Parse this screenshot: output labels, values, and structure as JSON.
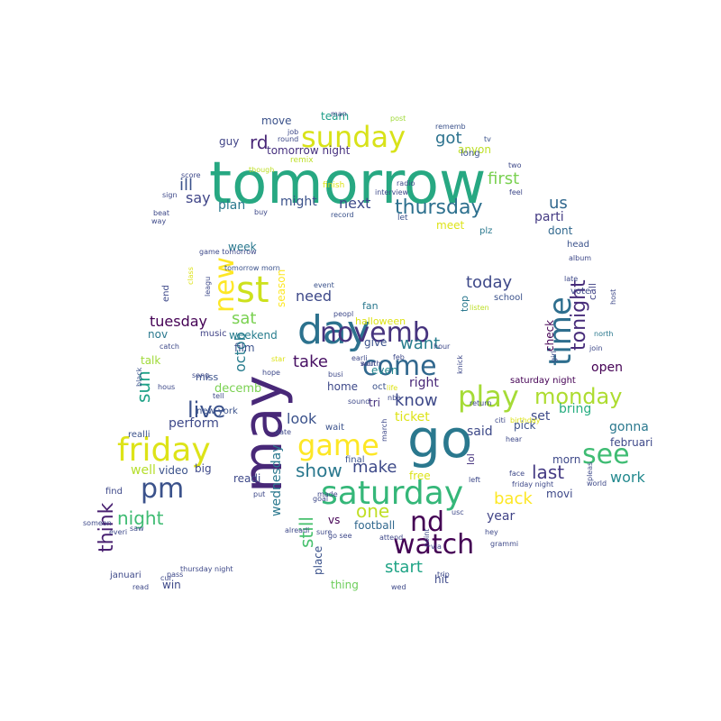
{
  "words": [
    {
      "text": "tomorrow",
      "color": "#27a882"
    },
    {
      "text": "go",
      "color": "#2a788e"
    },
    {
      "text": "may",
      "color": "#482878"
    },
    {
      "text": "day",
      "color": "#2c728e"
    },
    {
      "text": "st",
      "color": "#cde11d"
    },
    {
      "text": "saturday",
      "color": "#35b779"
    },
    {
      "text": "friday",
      "color": "#dde318"
    },
    {
      "text": "come",
      "color": "#31688e"
    },
    {
      "text": "watch",
      "color": "#440154"
    },
    {
      "text": "play",
      "color": "#a5db36"
    },
    {
      "text": "sunday",
      "color": "#d8e219"
    },
    {
      "text": "game",
      "color": "#fde725"
    },
    {
      "text": "pm",
      "color": "#3b528b"
    },
    {
      "text": "novemb",
      "color": "#46337e"
    },
    {
      "text": "time",
      "color": "#2e6e8e"
    },
    {
      "text": "see",
      "color": "#3fbc73"
    },
    {
      "text": "nd",
      "color": "#440154"
    },
    {
      "text": "live",
      "color": "#3b528b"
    },
    {
      "text": "new",
      "color": "#fde725"
    },
    {
      "text": "thursday",
      "color": "#2d708e"
    },
    {
      "text": "monday",
      "color": "#addc30"
    },
    {
      "text": "tonight",
      "color": "#472c7a"
    },
    {
      "text": "night",
      "color": "#3fbc73"
    },
    {
      "text": "think",
      "color": "#481f70"
    },
    {
      "text": "one",
      "color": "#c0df25"
    },
    {
      "text": "show",
      "color": "#2a788e"
    },
    {
      "text": "make",
      "color": "#3e4a89"
    },
    {
      "text": "take",
      "color": "#471063"
    },
    {
      "text": "today",
      "color": "#3e4989"
    },
    {
      "text": "know",
      "color": "#3e4989"
    },
    {
      "text": "got",
      "color": "#2c728e"
    },
    {
      "text": "back",
      "color": "#fde725"
    },
    {
      "text": "last",
      "color": "#443a83"
    },
    {
      "text": "start",
      "color": "#20a486"
    },
    {
      "text": "want",
      "color": "#287d8e"
    },
    {
      "text": "still",
      "color": "#48c16e"
    },
    {
      "text": "rd",
      "color": "#482677"
    },
    {
      "text": "first",
      "color": "#7ad151"
    },
    {
      "text": "next",
      "color": "#3e4a89"
    },
    {
      "text": "us",
      "color": "#31688e"
    },
    {
      "text": "sat",
      "color": "#7ad151"
    },
    {
      "text": "need",
      "color": "#3e4989"
    },
    {
      "text": "sun",
      "color": "#1fa287"
    },
    {
      "text": "tuesday",
      "color": "#440154"
    },
    {
      "text": "octob",
      "color": "#287d8e"
    },
    {
      "text": "wednesday",
      "color": "#2a788e"
    },
    {
      "text": "work",
      "color": "#23898e"
    },
    {
      "text": "look",
      "color": "#3b528b"
    },
    {
      "text": "ill",
      "color": "#3b528b"
    },
    {
      "text": "say",
      "color": "#404688"
    },
    {
      "text": "said",
      "color": "#3e4a89"
    },
    {
      "text": "year",
      "color": "#414487"
    },
    {
      "text": "gonna",
      "color": "#2a788e"
    },
    {
      "text": "open",
      "color": "#440154"
    },
    {
      "text": "ticket",
      "color": "#dde318"
    },
    {
      "text": "right",
      "color": "#482677"
    },
    {
      "text": "set",
      "color": "#3e4a89"
    },
    {
      "text": "bring",
      "color": "#27ad81"
    },
    {
      "text": "perform",
      "color": "#3e4989"
    },
    {
      "text": "decemb",
      "color": "#7ad151"
    },
    {
      "text": "give",
      "color": "#3b528b"
    },
    {
      "text": "even",
      "color": "#24868e"
    },
    {
      "text": "home",
      "color": "#3e4989"
    },
    {
      "text": "tri",
      "color": "#46337e"
    },
    {
      "text": "video",
      "color": "#3b528b"
    },
    {
      "text": "big",
      "color": "#3e4989"
    },
    {
      "text": "well",
      "color": "#b5de2b"
    },
    {
      "text": "readi",
      "color": "#3e4989"
    },
    {
      "text": "plan",
      "color": "#2a788e"
    },
    {
      "text": "might",
      "color": "#3b528b"
    },
    {
      "text": "guy",
      "color": "#414487"
    },
    {
      "text": "move",
      "color": "#3b528b"
    },
    {
      "text": "team",
      "color": "#1f9e89"
    },
    {
      "text": "tomorrow night",
      "color": "#46307e"
    },
    {
      "text": "anyon",
      "color": "#bddf26"
    },
    {
      "text": "long",
      "color": "#3b528b"
    },
    {
      "text": "parti",
      "color": "#443a83"
    },
    {
      "text": "dont",
      "color": "#31688e"
    },
    {
      "text": "meet",
      "color": "#dde318"
    },
    {
      "text": "week",
      "color": "#2a788e"
    },
    {
      "text": "nov",
      "color": "#2a788e"
    },
    {
      "text": "weekend",
      "color": "#287d8e"
    },
    {
      "text": "film",
      "color": "#3b528b"
    },
    {
      "text": "talk",
      "color": "#a0da39"
    },
    {
      "text": "miss",
      "color": "#3b528b"
    },
    {
      "text": "season",
      "color": "#fde725"
    },
    {
      "text": "pick",
      "color": "#3b528b"
    },
    {
      "text": "morn",
      "color": "#3e4989"
    },
    {
      "text": "februari",
      "color": "#3e4989"
    },
    {
      "text": "movi",
      "color": "#3e4989"
    },
    {
      "text": "free",
      "color": "#dde318"
    },
    {
      "text": "football",
      "color": "#31688e"
    },
    {
      "text": "vs",
      "color": "#440154"
    },
    {
      "text": "place",
      "color": "#3b528b"
    },
    {
      "text": "thing",
      "color": "#6ccd5a"
    },
    {
      "text": "hit",
      "color": "#3e4989"
    },
    {
      "text": "win",
      "color": "#3e4989"
    },
    {
      "text": "call",
      "color": "#414487"
    },
    {
      "text": "check",
      "color": "#440154"
    },
    {
      "text": "top",
      "color": "#2a788e"
    },
    {
      "text": "lol",
      "color": "#46337e"
    },
    {
      "text": "fan",
      "color": "#2a788e"
    },
    {
      "text": "halloween",
      "color": "#dde318"
    },
    {
      "text": "end",
      "color": "#3e4989"
    },
    {
      "text": "music",
      "color": "#414487"
    },
    {
      "text": "new york",
      "color": "#3b528b"
    },
    {
      "text": "januari",
      "color": "#3e4989"
    },
    {
      "text": "school",
      "color": "#3b528b"
    },
    {
      "text": "vote",
      "color": "#3e4989"
    },
    {
      "text": "head",
      "color": "#3b528b"
    },
    {
      "text": "saturday night",
      "color": "#440154"
    },
    {
      "text": "find",
      "color": "#3e4989"
    },
    {
      "text": "realli",
      "color": "#3b528b"
    },
    {
      "text": "oct",
      "color": "#3b528b"
    },
    {
      "text": "event",
      "color": "#3b528b"
    },
    {
      "text": "wait",
      "color": "#3b528b"
    },
    {
      "text": "final",
      "color": "#3b528b"
    },
    {
      "text": "plz",
      "color": "#2a788e"
    },
    {
      "text": "let",
      "color": "#3b528b"
    },
    {
      "text": "finish",
      "color": "#dde318"
    },
    {
      "text": "remix",
      "color": "#bddf26"
    },
    {
      "text": "man",
      "color": "#3e4989"
    },
    {
      "text": "post",
      "color": "#a0da39"
    },
    {
      "text": "rememb",
      "color": "#3b528b"
    },
    {
      "text": "job",
      "color": "#3e4989"
    },
    {
      "text": "round",
      "color": "#3e4989"
    },
    {
      "text": "tv",
      "color": "#3b528b"
    },
    {
      "text": "two",
      "color": "#3e4989"
    },
    {
      "text": "feel",
      "color": "#3e4989"
    },
    {
      "text": "though",
      "color": "#bddf26"
    },
    {
      "text": "sign",
      "color": "#3e4989"
    },
    {
      "text": "interview",
      "color": "#3e4989"
    },
    {
      "text": "radio",
      "color": "#3e4989"
    },
    {
      "text": "buy",
      "color": "#3e4989"
    },
    {
      "text": "way",
      "color": "#3e4989"
    },
    {
      "text": "beat",
      "color": "#3e4989"
    },
    {
      "text": "record",
      "color": "#3b528b"
    },
    {
      "text": "game tomorrow",
      "color": "#3e4989"
    },
    {
      "text": "tomorrow morn",
      "color": "#3b528b"
    },
    {
      "text": "class",
      "color": "#dde318"
    },
    {
      "text": "leagu",
      "color": "#3e4989"
    },
    {
      "text": "peopl",
      "color": "#3e4989"
    },
    {
      "text": "listen",
      "color": "#bddf26"
    },
    {
      "text": "late",
      "color": "#3e4989"
    },
    {
      "text": "host",
      "color": "#3e4989"
    },
    {
      "text": "catch",
      "color": "#3e4989"
    },
    {
      "text": "star",
      "color": "#dde318"
    },
    {
      "text": "hour",
      "color": "#3e4989"
    },
    {
      "text": "join",
      "color": "#3e4989"
    },
    {
      "text": "girl",
      "color": "#3e4989"
    },
    {
      "text": "album",
      "color": "#3e4989"
    },
    {
      "text": "north",
      "color": "#2a788e"
    },
    {
      "text": "black",
      "color": "#3b528b"
    },
    {
      "text": "hous",
      "color": "#3e4989"
    },
    {
      "text": "sound",
      "color": "#3e4989"
    },
    {
      "text": "life",
      "color": "#dde318"
    },
    {
      "text": "nba",
      "color": "#3e4989"
    },
    {
      "text": "knick",
      "color": "#3e4989"
    },
    {
      "text": "return",
      "color": "#3e4989"
    },
    {
      "text": "citi",
      "color": "#3e4989"
    },
    {
      "text": "birthday",
      "color": "#dde318"
    },
    {
      "text": "hear",
      "color": "#3e4989"
    },
    {
      "text": "march",
      "color": "#3e4989"
    },
    {
      "text": "left",
      "color": "#3e4989"
    },
    {
      "text": "pleas",
      "color": "#3e4989"
    },
    {
      "text": "face",
      "color": "#3e4989"
    },
    {
      "text": "friday night",
      "color": "#3e4989"
    },
    {
      "text": "world",
      "color": "#3e4989"
    },
    {
      "text": "made",
      "color": "#3e4989"
    },
    {
      "text": "put",
      "color": "#3e4989"
    },
    {
      "text": "goal",
      "color": "#3e4989"
    },
    {
      "text": "everi",
      "color": "#3e4989"
    },
    {
      "text": "someon",
      "color": "#3e4989"
    },
    {
      "text": "saw",
      "color": "#3e4989"
    },
    {
      "text": "usc",
      "color": "#3e4989"
    },
    {
      "text": "go see",
      "color": "#3e4989"
    },
    {
      "text": "hey",
      "color": "#3e4989"
    },
    {
      "text": "sure",
      "color": "#3e4989"
    },
    {
      "text": "grammi",
      "color": "#3e4989"
    },
    {
      "text": "attend",
      "color": "#3e4989"
    },
    {
      "text": "point",
      "color": "#3e4989"
    },
    {
      "text": "thursday night",
      "color": "#3e4989"
    },
    {
      "text": "pass",
      "color": "#3e4989"
    },
    {
      "text": "read",
      "color": "#3e4989"
    },
    {
      "text": "wed",
      "color": "#3e4989"
    },
    {
      "text": "trip",
      "color": "#3e4989"
    },
    {
      "text": "alreadi",
      "color": "#3e4989"
    },
    {
      "text": "cur",
      "color": "#3e4989"
    },
    {
      "text": "song",
      "color": "#3e4989"
    },
    {
      "text": "tell",
      "color": "#3e4989"
    },
    {
      "text": "date",
      "color": "#3e4989"
    },
    {
      "text": "busi",
      "color": "#3e4989"
    },
    {
      "text": "earli",
      "color": "#3e4989"
    },
    {
      "text": "feb",
      "color": "#3e4989"
    },
    {
      "text": "via",
      "color": "#3e4989"
    },
    {
      "text": "score",
      "color": "#3e4989"
    },
    {
      "text": "hope",
      "color": "#3e4989"
    },
    {
      "text": "south",
      "color": "#3e4989"
    },
    {
      "text": "won",
      "color": "#3e4989"
    }
  ]
}
